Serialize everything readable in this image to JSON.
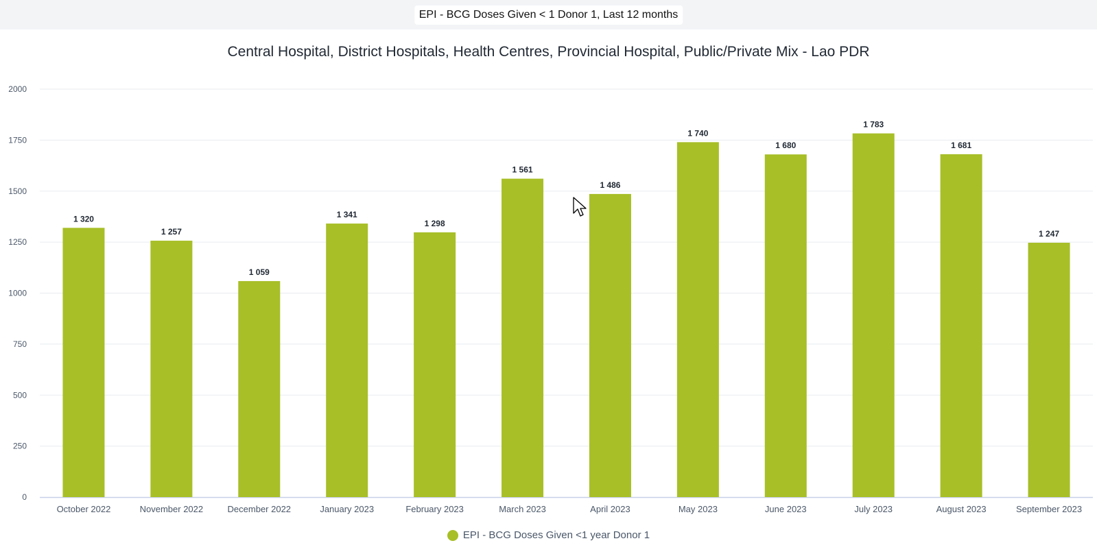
{
  "header": {
    "title": "EPI - BCG Doses Given < 1 Donor 1, Last 12 months"
  },
  "chart_data": {
    "type": "bar",
    "title": "Central Hospital, District Hospitals, Health Centres, Provincial Hospital, Public/Private Mix - Lao PDR",
    "categories": [
      "October 2022",
      "November 2022",
      "December 2022",
      "January 2023",
      "February 2023",
      "March 2023",
      "April 2023",
      "May 2023",
      "June 2023",
      "July 2023",
      "August 2023",
      "September 2023"
    ],
    "series": [
      {
        "name": "EPI - BCG Doses Given <1 year Donor 1",
        "values": [
          1320,
          1257,
          1059,
          1341,
          1298,
          1561,
          1486,
          1740,
          1680,
          1783,
          1681,
          1247
        ],
        "labels": [
          "1 320",
          "1 257",
          "1 059",
          "1 341",
          "1 298",
          "1 561",
          "1 486",
          "1 740",
          "1 680",
          "1 783",
          "1 681",
          "1 247"
        ],
        "color": "#a8bf27"
      }
    ],
    "yticks": [
      "0",
      "250",
      "500",
      "750",
      "1000",
      "1250",
      "1500",
      "1750",
      "2000"
    ],
    "ylim": [
      0,
      2000
    ],
    "xlabel": "",
    "ylabel": "",
    "grid": true,
    "legend": "bottom-center"
  }
}
